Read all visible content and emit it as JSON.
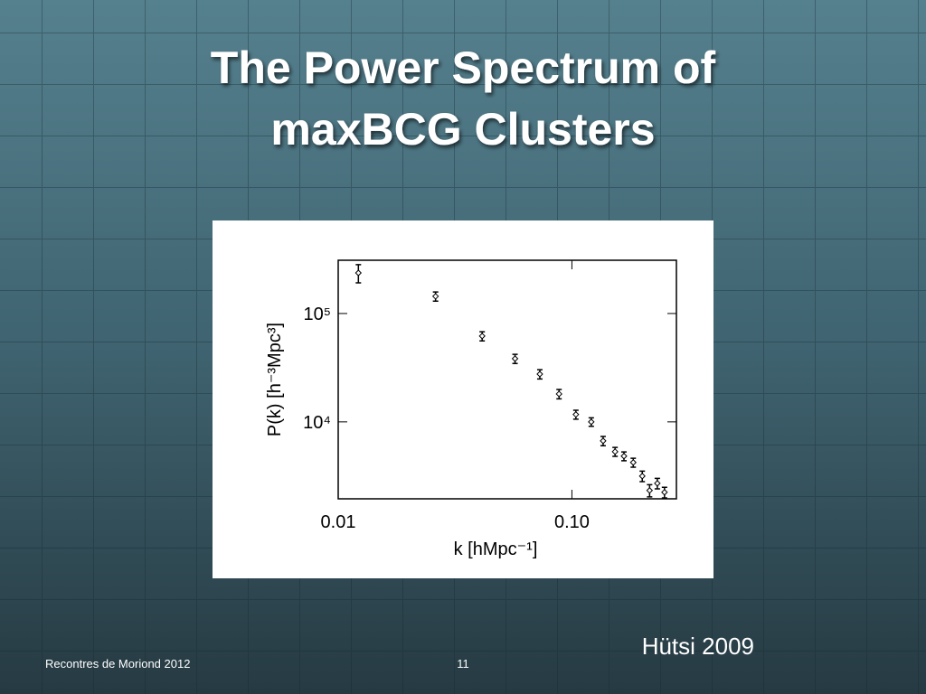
{
  "slide": {
    "title_lines": [
      "The Power Spectrum of",
      "maxBCG Clusters"
    ],
    "credit": "Hütsi 2009",
    "footer": "Recontres de Moriond 2012",
    "page_number": "11"
  },
  "chart_data": {
    "type": "scatter",
    "x_label": "k [hMpc⁻¹]",
    "y_label": "P(k) [h⁻³Mpc³]",
    "log_x": true,
    "log_y": true,
    "xlim": [
      0.01,
      0.28
    ],
    "ylim": [
      1950,
      310000
    ],
    "xticks": [
      0.01,
      {
        "value": 0.1,
        "label": "0.10"
      }
    ],
    "yticks": [
      {
        "value": 10000,
        "label": "10⁴"
      },
      {
        "value": 100000,
        "label": "10⁵"
      }
    ],
    "series": [
      {
        "color": "#000000",
        "x": [
          0.0122,
          0.0261,
          0.0413,
          0.0571,
          0.0729,
          0.0881,
          0.104,
          0.121,
          0.136,
          0.153,
          0.167,
          0.183,
          0.2,
          0.215,
          0.232,
          0.249
        ],
        "values": [
          237000,
          144000,
          61900,
          38300,
          27600,
          18100,
          11700,
          10000,
          6680,
          5310,
          4830,
          4220,
          3160,
          2330,
          2710,
          2240
        ],
        "errors": [
          45000,
          14000,
          6000,
          3700,
          2700,
          1800,
          1100,
          900,
          650,
          500,
          450,
          400,
          350,
          300,
          300,
          250
        ]
      }
    ]
  }
}
